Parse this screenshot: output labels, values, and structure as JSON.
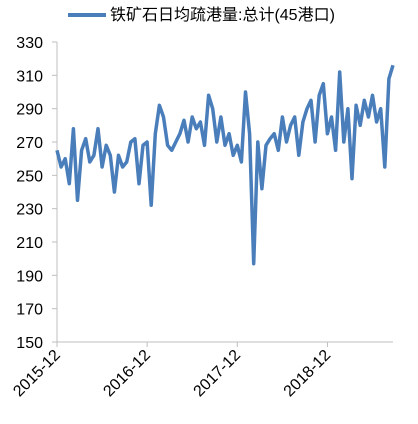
{
  "chart_data": {
    "type": "line",
    "title": "铁矿石日均疏港量:总计(45港口)",
    "categories": [
      "2015-12",
      null,
      null,
      null,
      null,
      null,
      null,
      null,
      null,
      null,
      null,
      null,
      null,
      null,
      null,
      null,
      null,
      null,
      null,
      null,
      null,
      null,
      "2016-12",
      null,
      null,
      null,
      null,
      null,
      null,
      null,
      null,
      null,
      null,
      null,
      null,
      null,
      null,
      null,
      null,
      null,
      null,
      null,
      null,
      null,
      "2017-12",
      null,
      null,
      null,
      null,
      null,
      null,
      null,
      null,
      null,
      null,
      null,
      null,
      null,
      null,
      null,
      null,
      null,
      null,
      null,
      null,
      null,
      "2018-12",
      null,
      null,
      null,
      null,
      null,
      null,
      null,
      null,
      null,
      null,
      null,
      null,
      null,
      null,
      null,
      null
    ],
    "series": [
      {
        "name": "铁矿石日均疏港量:总计(45港口)",
        "color": "#4a7ebb",
        "values": [
          265,
          255,
          260,
          245,
          278,
          235,
          265,
          272,
          258,
          262,
          278,
          255,
          268,
          262,
          240,
          262,
          255,
          258,
          270,
          272,
          245,
          268,
          270,
          232,
          275,
          292,
          285,
          268,
          265,
          270,
          275,
          283,
          270,
          285,
          278,
          282,
          268,
          298,
          290,
          270,
          285,
          268,
          275,
          262,
          268,
          258,
          300,
          275,
          197,
          270,
          242,
          268,
          272,
          275,
          265,
          285,
          270,
          280,
          285,
          262,
          282,
          290,
          295,
          270,
          298,
          305,
          275,
          285,
          265,
          312,
          270,
          290,
          248,
          292,
          280,
          295,
          285,
          298,
          282,
          290,
          255,
          308,
          316
        ]
      }
    ],
    "ylim": [
      150,
      330
    ],
    "yticks": [
      150,
      170,
      190,
      210,
      230,
      250,
      270,
      290,
      310,
      330
    ],
    "grid": false
  }
}
